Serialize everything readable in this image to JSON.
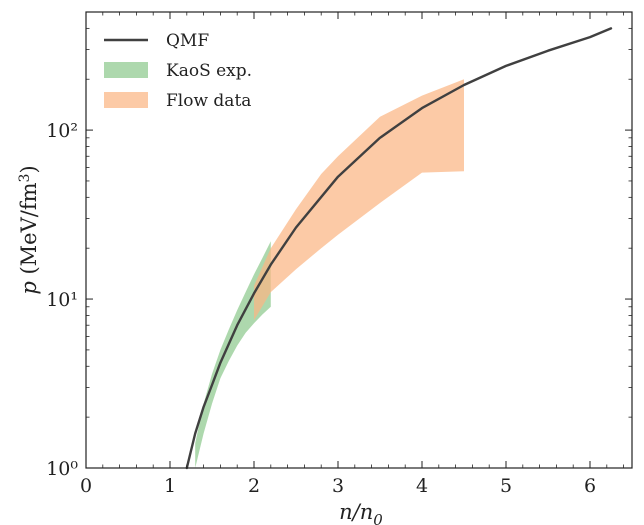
{
  "chart_data": {
    "type": "area",
    "xlabel": "n/n₀",
    "ylabel": "p (MeV/fm³)",
    "xlim": [
      0,
      6.5
    ],
    "ylim": [
      1,
      500
    ],
    "yscale": "log",
    "grid": false,
    "legend_placement": "top-left",
    "x_ticks": [
      0,
      1,
      2,
      3,
      4,
      5,
      6
    ],
    "x_tick_labels": [
      "0",
      "1",
      "2",
      "3",
      "4",
      "5",
      "6"
    ],
    "y_ticks": [
      1,
      10,
      100
    ],
    "y_tick_labels": [
      "10⁰",
      "10¹",
      "10²"
    ],
    "series": [
      {
        "name": "QMF",
        "kind": "line",
        "color": "#404040",
        "x": [
          1.2,
          1.3,
          1.4,
          1.5,
          1.6,
          1.8,
          2.0,
          2.2,
          2.5,
          3.0,
          3.5,
          4.0,
          4.5,
          5.0,
          5.5,
          6.0,
          6.25
        ],
        "y": [
          1.0,
          1.6,
          2.3,
          3.1,
          4.2,
          7.0,
          10.8,
          16.0,
          26.5,
          53.0,
          90.0,
          135.0,
          185.0,
          240.0,
          295.0,
          355.0,
          400.0
        ]
      },
      {
        "name": "KaoS exp.",
        "kind": "band",
        "color": "#8ec98e",
        "x": [
          1.3,
          1.4,
          1.5,
          1.6,
          1.7,
          1.8,
          1.9,
          2.0,
          2.1,
          2.2
        ],
        "upper": [
          1.4,
          2.4,
          3.6,
          5.0,
          6.6,
          8.6,
          11.0,
          14.0,
          17.5,
          22.0
        ],
        "lower": [
          1.0,
          1.6,
          2.4,
          3.4,
          4.3,
          5.3,
          6.3,
          7.2,
          8.1,
          9.0
        ]
      },
      {
        "name": "Flow data",
        "kind": "band",
        "color": "#fbb683",
        "x": [
          2.0,
          2.2,
          2.5,
          2.8,
          3.0,
          3.5,
          4.0,
          4.5
        ],
        "upper": [
          12.0,
          20.0,
          34.0,
          55.0,
          70.0,
          120.0,
          160.0,
          200.0
        ],
        "lower": [
          7.5,
          11.0,
          15.0,
          20.0,
          24.0,
          37.0,
          56.0,
          57.0
        ]
      }
    ]
  }
}
